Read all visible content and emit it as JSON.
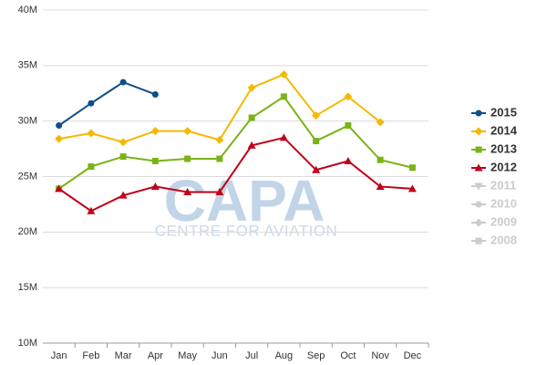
{
  "chart_data": {
    "type": "line",
    "watermark": "CAPA",
    "watermark_subtitle": "CENTRE FOR AVIATION",
    "categories": [
      "Jan",
      "Feb",
      "Mar",
      "Apr",
      "May",
      "Jun",
      "Jul",
      "Aug",
      "Sep",
      "Oct",
      "Nov",
      "Dec"
    ],
    "ylim": [
      10000000,
      40000000
    ],
    "yticks": [
      {
        "value": 10000000,
        "label": "10M"
      },
      {
        "value": 15000000,
        "label": "15M"
      },
      {
        "value": 20000000,
        "label": "20M"
      },
      {
        "value": 25000000,
        "label": "25M"
      },
      {
        "value": 30000000,
        "label": "30M"
      },
      {
        "value": 35000000,
        "label": "35M"
      },
      {
        "value": 40000000,
        "label": "40M"
      }
    ],
    "grid": true,
    "legend": "right",
    "series": [
      {
        "name": "2015",
        "color": "#0d4f8b",
        "marker": "circle",
        "values": [
          29600000,
          31600000,
          33500000,
          32400000,
          null,
          null,
          null,
          null,
          null,
          null,
          null,
          null
        ]
      },
      {
        "name": "2014",
        "color": "#f5b800",
        "marker": "diamond",
        "values": [
          28400000,
          28900000,
          28100000,
          29100000,
          29100000,
          28300000,
          33000000,
          34200000,
          30500000,
          32200000,
          29900000,
          null
        ]
      },
      {
        "name": "2013",
        "color": "#7ab317",
        "marker": "square",
        "values": [
          23900000,
          25900000,
          26800000,
          26400000,
          26600000,
          26600000,
          30300000,
          32200000,
          28200000,
          29600000,
          26500000,
          25800000
        ]
      },
      {
        "name": "2012",
        "color": "#c0001a",
        "marker": "triangle",
        "values": [
          23900000,
          21900000,
          23300000,
          24100000,
          23600000,
          23600000,
          27800000,
          28500000,
          25600000,
          26400000,
          24100000,
          23900000
        ]
      },
      {
        "name": "2011",
        "color": "#cccccc",
        "marker": "triangle-down",
        "values": [
          null,
          null,
          null,
          null,
          null,
          null,
          null,
          null,
          null,
          null,
          null,
          null
        ]
      },
      {
        "name": "2010",
        "color": "#cccccc",
        "marker": "circle",
        "values": [
          null,
          null,
          null,
          null,
          null,
          null,
          null,
          null,
          null,
          null,
          null,
          null
        ]
      },
      {
        "name": "2009",
        "color": "#cccccc",
        "marker": "diamond",
        "values": [
          null,
          null,
          null,
          null,
          null,
          null,
          null,
          null,
          null,
          null,
          null,
          null
        ]
      },
      {
        "name": "2008",
        "color": "#cccccc",
        "marker": "square",
        "values": [
          null,
          null,
          null,
          null,
          null,
          null,
          null,
          null,
          null,
          null,
          null,
          null
        ]
      }
    ]
  }
}
